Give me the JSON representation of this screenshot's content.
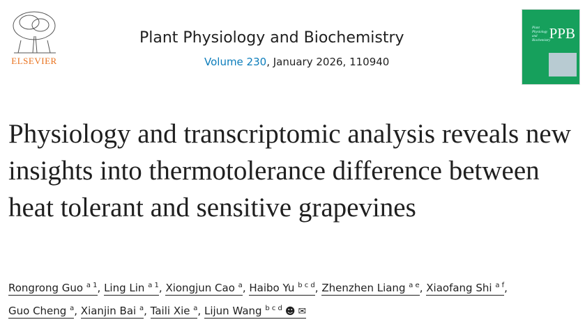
{
  "publisher": "ELSEVIER",
  "journal": {
    "name": "Plant Physiology and Biochemistry",
    "volume_link": "Volume 230",
    "issue_info": ", January 2026, 110940",
    "cover_text": "PPB"
  },
  "title": "Physiology and transcriptomic analysis reveals new insights into thermotolerance difference between heat tolerant and sensitive grapevines",
  "authors": [
    {
      "name": "Rongrong Guo",
      "sup": "a 1"
    },
    {
      "name": "Ling Lin",
      "sup": "a 1"
    },
    {
      "name": "Xiongjun Cao",
      "sup": "a"
    },
    {
      "name": "Haibo Yu",
      "sup": "b c d"
    },
    {
      "name": "Zhenzhen Liang",
      "sup": "a e"
    },
    {
      "name": "Xiaofang Shi",
      "sup": "a f"
    },
    {
      "name": "Guo Cheng",
      "sup": "a"
    },
    {
      "name": "Xianjin Bai",
      "sup": "a"
    },
    {
      "name": "Taili Xie",
      "sup": "a"
    },
    {
      "name": "Lijun Wang",
      "sup": "b c d"
    }
  ],
  "colors": {
    "link": "#0c7dbb",
    "elsevier_orange": "#e9711c",
    "cover_green": "#16a05c"
  },
  "icons": [
    "person-icon",
    "envelope-icon"
  ]
}
